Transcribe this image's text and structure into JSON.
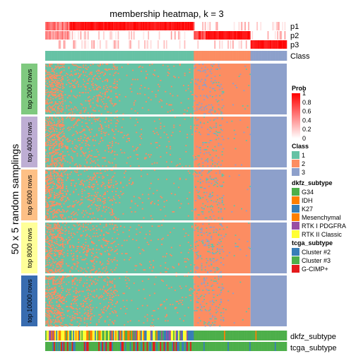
{
  "chart_data": {
    "type": "heatmap",
    "title": "membership heatmap, k = 3",
    "ylabel": "50 x 5 random samplings",
    "n_samples": 200,
    "classes": [
      "1",
      "2",
      "3"
    ],
    "class_colors": {
      "1": "#66C2A5",
      "2": "#FC8D62",
      "3": "#8DA0CB"
    },
    "class_boundaries": [
      0.0,
      0.617,
      0.848,
      1.0
    ],
    "top_annotation": {
      "rows": [
        "p1",
        "p2",
        "p3",
        "Class"
      ],
      "class_row_label": "Class"
    },
    "row_groups": [
      {
        "label": "top 2000 rows",
        "color": "#7FC97F"
      },
      {
        "label": "top 4000 rows",
        "color": "#BEAED4"
      },
      {
        "label": "top 6000 rows",
        "color": "#FDC086"
      },
      {
        "label": "top 8000 rows",
        "color": "#FFFF99"
      },
      {
        "label": "top 10000 rows",
        "color": "#386CB0"
      }
    ],
    "bottom_annotation": {
      "rows": [
        "dkfz_subtype",
        "tcga_subtype"
      ]
    },
    "legends": [
      {
        "title": "Prob",
        "type": "gradient",
        "min_color": "#FFFFFF",
        "max_color": "#FF0000",
        "ticks": [
          "1",
          "0.8",
          "0.6",
          "0.4",
          "0.2",
          "0"
        ]
      },
      {
        "title": "Class",
        "items": [
          {
            "label": "1",
            "color": "#66C2A5"
          },
          {
            "label": "2",
            "color": "#FC8D62"
          },
          {
            "label": "3",
            "color": "#8DA0CB"
          }
        ]
      },
      {
        "title": "dkfz_subtype",
        "items": [
          {
            "label": "G34",
            "color": "#4DAF4A"
          },
          {
            "label": "IDH",
            "color": "#FF7F00"
          },
          {
            "label": "K27",
            "color": "#377EB8"
          },
          {
            "label": "Mesenchymal",
            "color": "#FF7F00"
          },
          {
            "label": "RTK I PDGFRA",
            "color": "#984EA3"
          },
          {
            "label": "RTK II Classic",
            "color": "#FFFF33"
          }
        ]
      },
      {
        "title": "tcga_subtype",
        "items": [
          {
            "label": "Cluster #2",
            "color": "#377EB8"
          },
          {
            "label": "Cluster #3",
            "color": "#4DAF4A"
          },
          {
            "label": "G-CIMP+",
            "color": "#E41A1C"
          }
        ]
      }
    ]
  }
}
